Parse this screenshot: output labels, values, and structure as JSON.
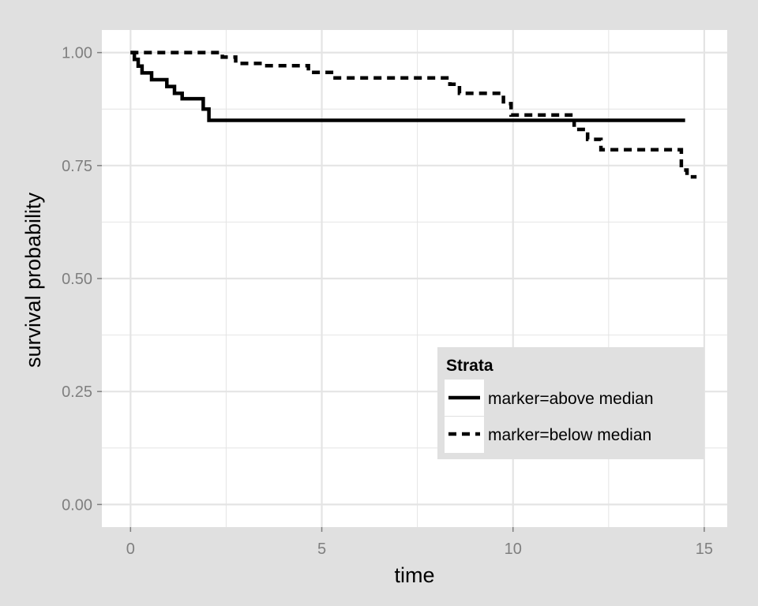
{
  "colors": {
    "outer_background": "#e0e0e0",
    "panel_background": "#ffffff",
    "grid": "#e4e4e4",
    "tick_label": "#7f7f7f",
    "legend_background": "#e0e0e0",
    "line": "#000000"
  },
  "chart_data": {
    "type": "line",
    "subtype": "kaplan-meier step",
    "xlabel": "time",
    "ylabel": "survival probability",
    "xlim": [
      -0.75,
      15.6
    ],
    "ylim": [
      -0.05,
      1.05
    ],
    "x_ticks": [
      0,
      5,
      10,
      15
    ],
    "x_tick_labels": [
      "0",
      "5",
      "10",
      "15"
    ],
    "y_ticks": [
      0,
      0.25,
      0.5,
      0.75,
      1
    ],
    "y_tick_labels": [
      "0.00",
      "0.25",
      "0.50",
      "0.75",
      "1.00"
    ],
    "grid": true,
    "legend": {
      "title": "Strata",
      "position": "bottom-right inside panel"
    },
    "series": [
      {
        "name": "marker=above median",
        "line_style": "solid",
        "points": [
          [
            0.0,
            1.0
          ],
          [
            0.1,
            0.985
          ],
          [
            0.2,
            0.97
          ],
          [
            0.3,
            0.955
          ],
          [
            0.55,
            0.94
          ],
          [
            0.95,
            0.925
          ],
          [
            1.15,
            0.91
          ],
          [
            1.35,
            0.898
          ],
          [
            1.9,
            0.875
          ],
          [
            2.05,
            0.85
          ],
          [
            14.5,
            0.85
          ]
        ]
      },
      {
        "name": "marker=below median",
        "line_style": "dashed",
        "points": [
          [
            0.0,
            1.0
          ],
          [
            2.4,
            0.99
          ],
          [
            2.75,
            0.976
          ],
          [
            3.5,
            0.971
          ],
          [
            4.65,
            0.956
          ],
          [
            5.3,
            0.944
          ],
          [
            8.35,
            0.93
          ],
          [
            8.6,
            0.91
          ],
          [
            9.75,
            0.887
          ],
          [
            9.95,
            0.862
          ],
          [
            11.6,
            0.83
          ],
          [
            11.95,
            0.808
          ],
          [
            12.3,
            0.785
          ],
          [
            14.4,
            0.74
          ],
          [
            14.55,
            0.725
          ],
          [
            14.8,
            0.725
          ]
        ]
      }
    ]
  }
}
